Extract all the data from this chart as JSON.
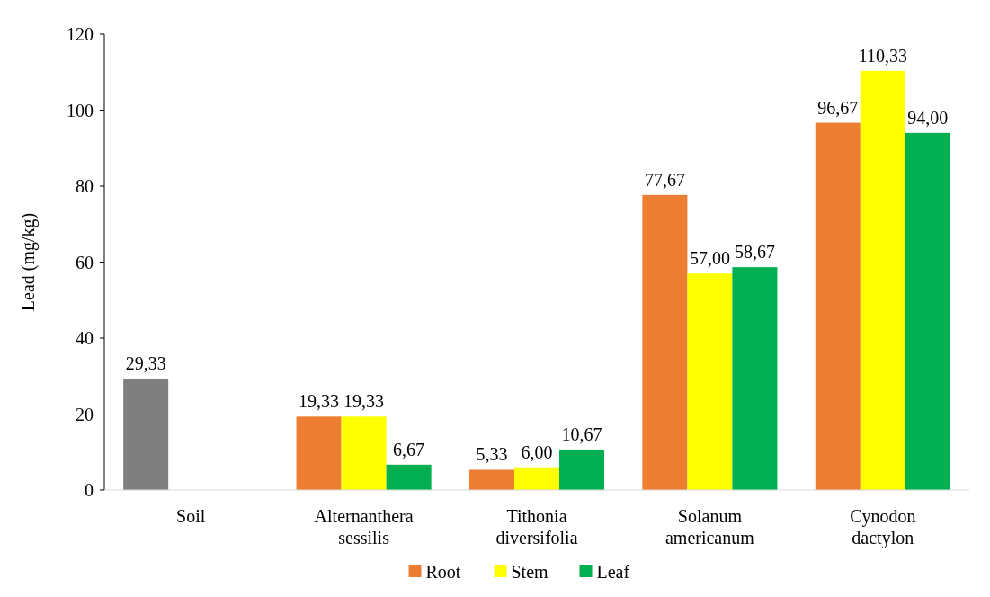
{
  "chart_data": {
    "type": "bar",
    "ylabel": "Lead (mg/kg)",
    "categories": [
      "Soil",
      "Alternanthera sessilis",
      "Tithonia diversifolia",
      "Solanum americanum",
      "Cynodon dactylon"
    ],
    "series": [
      {
        "name": "Root",
        "color": "#ed7d31",
        "colors": [
          "#7f7f7f",
          "#ed7d31",
          "#ed7d31",
          "#ed7d31",
          "#ed7d31"
        ],
        "values": [
          29.33,
          19.33,
          5.33,
          77.67,
          96.67
        ],
        "value_labels": [
          "29,33",
          "19,33",
          "5,33",
          "77,67",
          "96,67"
        ]
      },
      {
        "name": "Stem",
        "color": "#ffff00",
        "values": [
          null,
          19.33,
          6.0,
          57.0,
          110.33
        ],
        "value_labels": [
          null,
          "19,33",
          "6,00",
          "57,00",
          "110,33"
        ]
      },
      {
        "name": "Leaf",
        "color": "#00b050",
        "values": [
          null,
          6.67,
          10.67,
          58.67,
          94.0
        ],
        "value_labels": [
          null,
          "6,67",
          "10,67",
          "58,67",
          "94,00"
        ]
      }
    ],
    "ylim": [
      0,
      120
    ],
    "yticks": [
      0,
      20,
      40,
      60,
      80,
      100,
      120
    ],
    "grid": false,
    "legend": "bottom"
  }
}
